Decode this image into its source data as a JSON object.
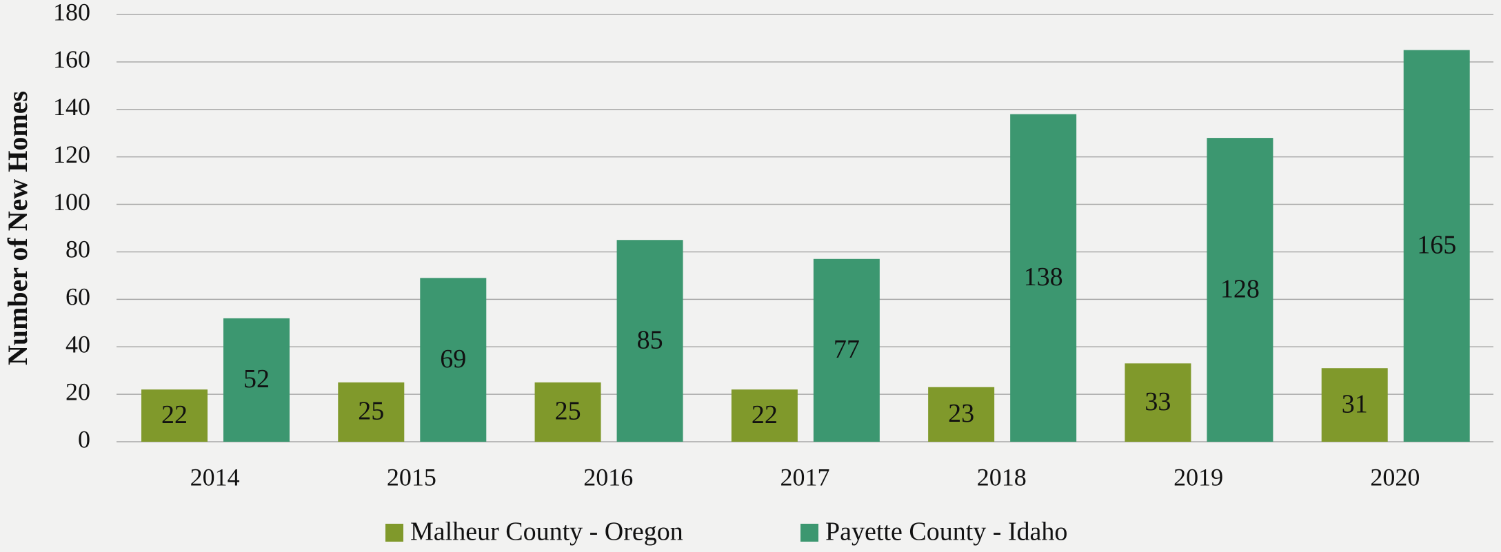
{
  "chart_data": {
    "type": "bar",
    "y_label": "Number of New Homes",
    "categories": [
      "2014",
      "2015",
      "2016",
      "2017",
      "2018",
      "2019",
      "2020"
    ],
    "series": [
      {
        "name": "Malheur County - Oregon",
        "color": "#80992b",
        "values": [
          22,
          25,
          25,
          22,
          23,
          33,
          31
        ]
      },
      {
        "name": "Payette County - Idaho",
        "color": "#3c9770",
        "values": [
          52,
          69,
          85,
          77,
          138,
          128,
          165
        ]
      }
    ],
    "ylim": [
      0,
      180
    ],
    "yticks": [
      0,
      20,
      40,
      60,
      80,
      100,
      120,
      140,
      160,
      180
    ],
    "grid": true,
    "legend": "bottom"
  }
}
